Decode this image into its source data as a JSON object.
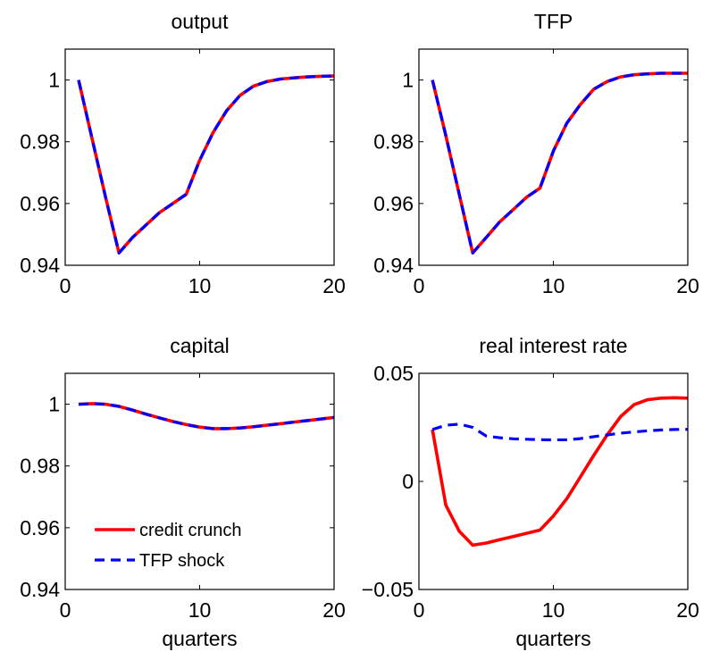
{
  "colors": {
    "credit_crunch": "#ff0000",
    "tfp_shock": "#0000ff",
    "axes": "#000000"
  },
  "chart_data": [
    {
      "type": "line",
      "title": "output",
      "xlabel": "",
      "ylabel": "",
      "xlim": [
        0,
        20
      ],
      "ylim": [
        0.94,
        1.01
      ],
      "xticks": [
        0,
        10,
        20
      ],
      "yticks": [
        0.94,
        0.96,
        0.98,
        1
      ],
      "xtick_labels": [
        "0",
        "10",
        "20"
      ],
      "ytick_labels": [
        "0.94",
        "0.96",
        "0.98",
        "1"
      ],
      "grid": false,
      "series": [
        {
          "name": "credit crunch",
          "style": "solid",
          "x": [
            1,
            2,
            3,
            4,
            5,
            6,
            7,
            8,
            9,
            10,
            11,
            12,
            13,
            14,
            15,
            16,
            17,
            18,
            19,
            20
          ],
          "values": [
            1.0,
            0.981,
            0.962,
            0.944,
            0.949,
            0.953,
            0.957,
            0.96,
            0.963,
            0.974,
            0.983,
            0.99,
            0.995,
            0.998,
            0.9995,
            1.0003,
            1.0007,
            1.001,
            1.0012,
            1.0013
          ]
        },
        {
          "name": "TFP shock",
          "style": "dashed",
          "x": [
            1,
            2,
            3,
            4,
            5,
            6,
            7,
            8,
            9,
            10,
            11,
            12,
            13,
            14,
            15,
            16,
            17,
            18,
            19,
            20
          ],
          "values": [
            1.0,
            0.981,
            0.962,
            0.944,
            0.949,
            0.953,
            0.957,
            0.96,
            0.963,
            0.974,
            0.983,
            0.99,
            0.995,
            0.998,
            0.9995,
            1.0003,
            1.0007,
            1.001,
            1.0012,
            1.0013
          ]
        }
      ]
    },
    {
      "type": "line",
      "title": "TFP",
      "xlabel": "",
      "ylabel": "",
      "xlim": [
        0,
        20
      ],
      "ylim": [
        0.94,
        1.01
      ],
      "xticks": [
        0,
        10,
        20
      ],
      "yticks": [
        0.94,
        0.96,
        0.98,
        1
      ],
      "xtick_labels": [
        "0",
        "10",
        "20"
      ],
      "ytick_labels": [
        "0.94",
        "0.96",
        "0.98",
        "1"
      ],
      "grid": false,
      "series": [
        {
          "name": "credit crunch",
          "style": "solid",
          "x": [
            1,
            2,
            3,
            4,
            5,
            6,
            7,
            8,
            9,
            10,
            11,
            12,
            13,
            14,
            15,
            16,
            17,
            18,
            19,
            20
          ],
          "values": [
            1.0,
            0.982,
            0.963,
            0.944,
            0.949,
            0.954,
            0.958,
            0.962,
            0.965,
            0.977,
            0.986,
            0.992,
            0.997,
            0.9995,
            1.001,
            1.0017,
            1.002,
            1.0022,
            1.0022,
            1.0022
          ]
        },
        {
          "name": "TFP shock",
          "style": "dashed",
          "x": [
            1,
            2,
            3,
            4,
            5,
            6,
            7,
            8,
            9,
            10,
            11,
            12,
            13,
            14,
            15,
            16,
            17,
            18,
            19,
            20
          ],
          "values": [
            1.0,
            0.982,
            0.963,
            0.944,
            0.949,
            0.954,
            0.958,
            0.962,
            0.965,
            0.977,
            0.986,
            0.992,
            0.997,
            0.9995,
            1.001,
            1.0017,
            1.002,
            1.0022,
            1.0022,
            1.0022
          ]
        }
      ]
    },
    {
      "type": "line",
      "title": "capital",
      "xlabel": "quarters",
      "ylabel": "",
      "xlim": [
        0,
        20
      ],
      "ylim": [
        0.94,
        1.01
      ],
      "xticks": [
        0,
        10,
        20
      ],
      "yticks": [
        0.94,
        0.96,
        0.98,
        1
      ],
      "xtick_labels": [
        "0",
        "10",
        "20"
      ],
      "ytick_labels": [
        "0.94",
        "0.96",
        "0.98",
        "1"
      ],
      "grid": false,
      "legend": {
        "position": "bottom-left",
        "entries": [
          "credit crunch",
          "TFP shock"
        ]
      },
      "series": [
        {
          "name": "credit crunch",
          "style": "solid",
          "x": [
            1,
            2,
            3,
            4,
            5,
            6,
            7,
            8,
            9,
            10,
            11,
            12,
            13,
            14,
            15,
            16,
            17,
            18,
            19,
            20
          ],
          "values": [
            1.0,
            1.0002,
            1.0,
            0.9993,
            0.9981,
            0.9968,
            0.9956,
            0.9944,
            0.9934,
            0.9926,
            0.9921,
            0.9921,
            0.9923,
            0.9927,
            0.9932,
            0.9937,
            0.9942,
            0.9947,
            0.9952,
            0.9957
          ]
        },
        {
          "name": "TFP shock",
          "style": "dashed",
          "x": [
            1,
            2,
            3,
            4,
            5,
            6,
            7,
            8,
            9,
            10,
            11,
            12,
            13,
            14,
            15,
            16,
            17,
            18,
            19,
            20
          ],
          "values": [
            1.0,
            1.0002,
            1.0,
            0.9993,
            0.9981,
            0.9968,
            0.9956,
            0.9944,
            0.9934,
            0.9926,
            0.9921,
            0.9921,
            0.9923,
            0.9927,
            0.9932,
            0.9937,
            0.9942,
            0.9947,
            0.9952,
            0.9957
          ]
        }
      ]
    },
    {
      "type": "line",
      "title": "real interest rate",
      "xlabel": "quarters",
      "ylabel": "",
      "xlim": [
        0,
        20
      ],
      "ylim": [
        -0.05,
        0.05
      ],
      "xticks": [
        0,
        10,
        20
      ],
      "yticks": [
        -0.05,
        0,
        0.05
      ],
      "xtick_labels": [
        "0",
        "10",
        "20"
      ],
      "ytick_labels": [
        "−0.05",
        "0",
        "0.05"
      ],
      "grid": false,
      "series": [
        {
          "name": "credit crunch",
          "style": "solid",
          "x": [
            1,
            2,
            3,
            4,
            5,
            6,
            7,
            8,
            9,
            10,
            11,
            12,
            13,
            14,
            15,
            16,
            17,
            18,
            19,
            20
          ],
          "values": [
            0.024,
            -0.011,
            -0.023,
            -0.0295,
            -0.0285,
            -0.027,
            -0.0255,
            -0.024,
            -0.0225,
            -0.016,
            -0.008,
            0.002,
            0.012,
            0.0215,
            0.03,
            0.0355,
            0.0378,
            0.0385,
            0.0387,
            0.0385
          ]
        },
        {
          "name": "TFP shock",
          "style": "dashed",
          "x": [
            1,
            2,
            3,
            4,
            5,
            6,
            7,
            8,
            9,
            10,
            11,
            12,
            13,
            14,
            15,
            16,
            17,
            18,
            19,
            20
          ],
          "values": [
            0.024,
            0.026,
            0.0265,
            0.025,
            0.021,
            0.0202,
            0.0197,
            0.0195,
            0.0193,
            0.0192,
            0.0193,
            0.0198,
            0.0207,
            0.0215,
            0.0223,
            0.0229,
            0.0234,
            0.0238,
            0.024,
            0.0241
          ]
        }
      ]
    }
  ]
}
